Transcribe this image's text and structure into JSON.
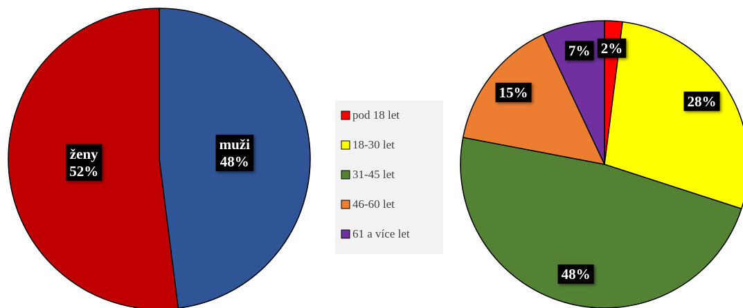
{
  "chart_data": [
    {
      "type": "pie",
      "categories": [
        "muži",
        "ženy"
      ],
      "values": [
        48,
        52
      ],
      "value_labels": [
        "48%",
        "52%"
      ],
      "colors": [
        "#2f5597",
        "#c00000"
      ]
    },
    {
      "type": "pie",
      "categories": [
        "pod 18 let",
        "18-30 let",
        "31-45 let",
        "46-60 let",
        "61 a více let"
      ],
      "values": [
        2,
        28,
        48,
        15,
        7
      ],
      "value_labels": [
        "2%",
        "28%",
        "48%",
        "15%",
        "7%"
      ],
      "colors": [
        "#ff0000",
        "#ffff00",
        "#548235",
        "#ed7d31",
        "#7030a0"
      ],
      "legend": "left"
    }
  ]
}
